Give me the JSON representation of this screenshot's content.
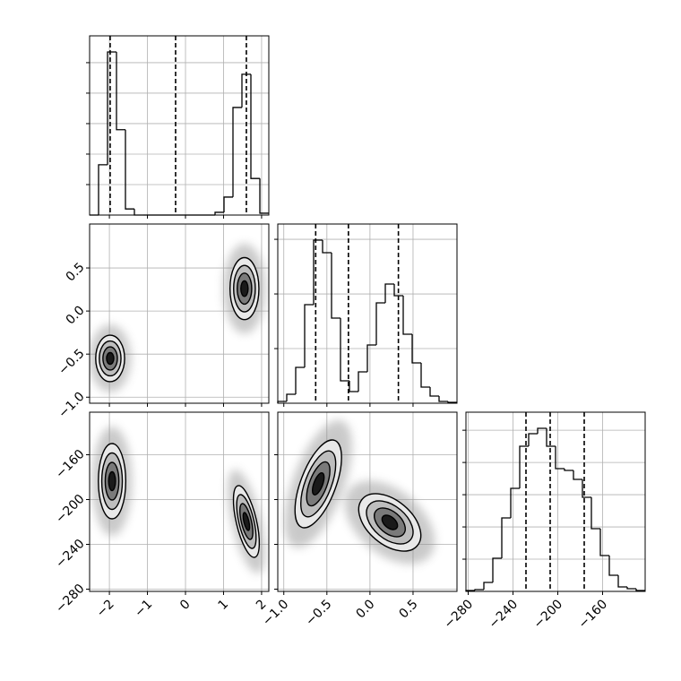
{
  "chart_data": {
    "type": "corner",
    "grid": true,
    "color": "#000000",
    "contour_levels": [
      2,
      1.5,
      1,
      0.5
    ],
    "contour_fills": [
      "#e8e8e8",
      "#bdbdbd",
      "#7a7a7a",
      "#1a1a1a"
    ],
    "params": [
      {
        "lim": [
          -2.52,
          2.19
        ],
        "ticks": [
          {
            "value": -2,
            "label": "−2"
          },
          {
            "value": -1,
            "label": "−1"
          },
          0,
          1,
          2
        ],
        "quantiles": [
          -1.98,
          -0.26,
          1.6
        ],
        "hist": {
          "bins": [
            -2.52,
            -2.2845,
            -2.049,
            -1.8135,
            -1.578,
            -1.3425,
            -1.107,
            -0.8715,
            -0.636,
            -0.4005,
            -0.165,
            0.0705,
            0.306,
            0.5415,
            0.777,
            1.0125,
            1.248,
            1.4835,
            1.719,
            1.9545,
            2.19
          ],
          "counts": [
            0,
            1650,
            5350,
            2800,
            200,
            0,
            0,
            0,
            0,
            0,
            0,
            0,
            0,
            0,
            90,
            590,
            3530,
            4620,
            1200,
            60
          ],
          "ylim": [
            0,
            5880
          ],
          "yticks": [
            1000,
            2000,
            3000,
            4000,
            5000
          ]
        }
      },
      {
        "lim": [
          -1.07,
          1.01
        ],
        "ticks": [
          {
            "value": -1,
            "label": "−1.0"
          },
          {
            "value": -0.5,
            "label": "−0.5"
          },
          {
            "value": 0,
            "label": "0.0"
          },
          0.5
        ],
        "quantiles": [
          -0.63,
          -0.25,
          0.33
        ],
        "hist": {
          "bins": [
            -1.07,
            -0.966,
            -0.862,
            -0.758,
            -0.654,
            -0.55,
            -0.446,
            -0.342,
            -0.238,
            -0.134,
            -0.03,
            0.074,
            0.178,
            0.282,
            0.386,
            0.49,
            0.594,
            0.698,
            0.802,
            0.906,
            1.01
          ],
          "counts": [
            33,
            164,
            656,
            1804,
            2985,
            2755,
            1558,
            410,
            213,
            574,
            1066,
            1837,
            2181,
            1968,
            1263,
            738,
            295,
            131,
            33,
            16
          ],
          "ylim": [
            0,
            3280
          ],
          "yticks": [
            1000,
            2000,
            3000
          ]
        }
      },
      {
        "lim": [
          -282,
          -122
        ],
        "ticks": [
          {
            "value": -280,
            "label": "−280"
          },
          {
            "value": -240,
            "label": "−240"
          },
          {
            "value": -200,
            "label": "−200"
          },
          {
            "value": -160,
            "label": "−160"
          }
        ],
        "quantiles": [
          -228.4,
          -206.8,
          -176.4
        ],
        "hist": {
          "bins": [
            -282,
            -274,
            -266,
            -258,
            -250,
            -242,
            -234,
            -226,
            -218,
            -210,
            -202,
            -194,
            -186,
            -178,
            -170,
            -162,
            -154,
            -146,
            -138,
            -130,
            -122
          ],
          "counts": [
            14,
            28,
            139,
            514,
            1140,
            1599,
            2252,
            2446,
            2530,
            2252,
            1904,
            1877,
            1738,
            1460,
            973,
            556,
            250,
            70,
            42,
            14
          ],
          "ylim": [
            0,
            2780
          ],
          "yticks": [
            500,
            1000,
            1500,
            2000,
            2500
          ]
        }
      }
    ],
    "density": [
      {
        "x_param": 0,
        "y_param": 1,
        "clusters": [
          {
            "x": -1.98,
            "y": -0.55,
            "sx": 0.19,
            "sy": 0.135,
            "rho": 0
          },
          {
            "x": 1.55,
            "y": 0.26,
            "sx": 0.19,
            "sy": 0.18,
            "rho": 0
          }
        ]
      },
      {
        "x_param": 0,
        "y_param": 2,
        "clusters": [
          {
            "x": -1.93,
            "y": -183.6,
            "sx": 0.18,
            "sy": 16.8,
            "rho": 0
          },
          {
            "x": 1.6,
            "y": -219.6,
            "sx": 0.17,
            "sy": 16,
            "rho": -0.6
          }
        ]
      },
      {
        "x_param": 1,
        "y_param": 2,
        "clusters": [
          {
            "x": -0.6,
            "y": -186,
            "sx": 0.135,
            "sy": 19.6,
            "rho": 0.6
          },
          {
            "x": 0.23,
            "y": -220.4,
            "sx": 0.18,
            "sy": 12.8,
            "rho": -0.45
          }
        ]
      }
    ]
  }
}
